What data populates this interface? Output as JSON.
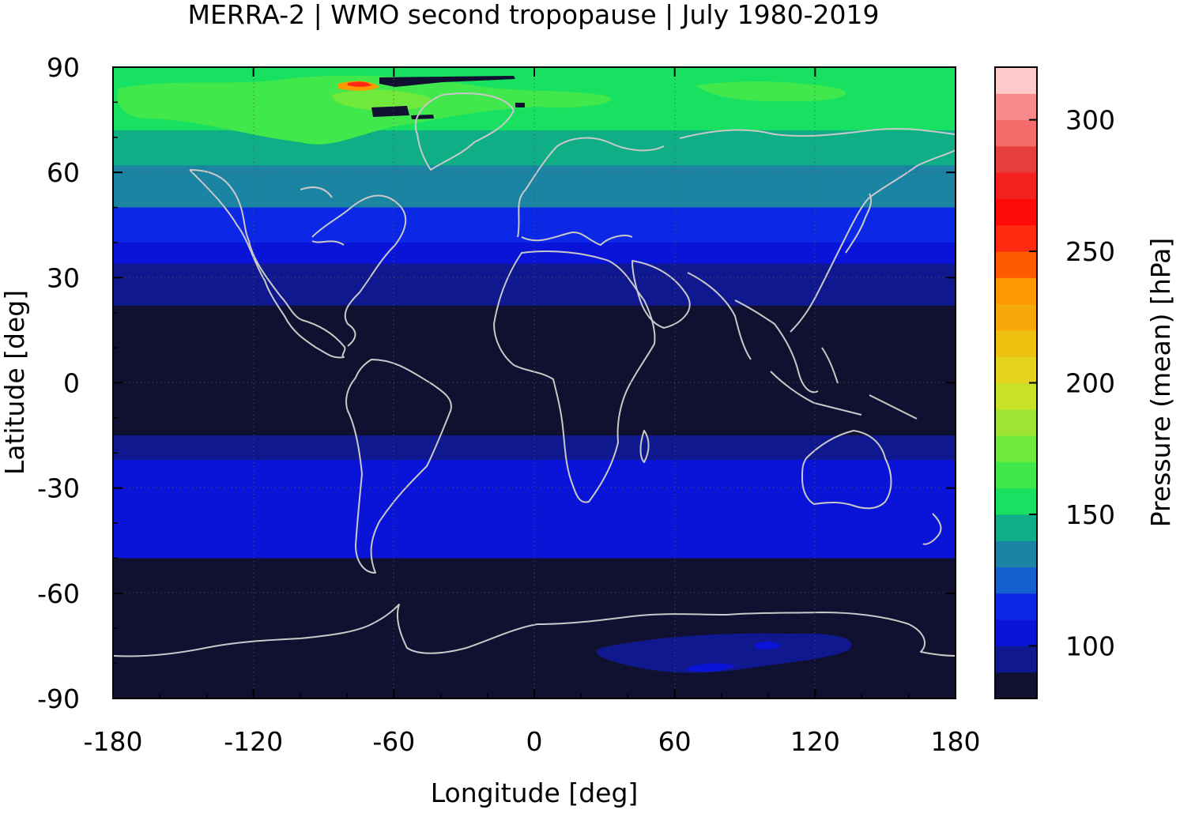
{
  "chart_data": {
    "type": "heatmap",
    "title": "MERRA-2 | WMO second tropopause | July 1980-2019",
    "xlabel": "Longitude [deg]",
    "ylabel": "Latitude [deg]",
    "xlim": [
      -180,
      180
    ],
    "ylim": [
      -90,
      90
    ],
    "x_ticks": [
      -180,
      -120,
      -60,
      0,
      60,
      120,
      180
    ],
    "y_ticks": [
      90,
      60,
      30,
      0,
      -30,
      -60,
      -90
    ],
    "x_tick_labels": [
      "-180",
      "-120",
      "-60",
      "0",
      "60",
      "120",
      "180"
    ],
    "y_tick_labels": [
      "90",
      "60",
      "30",
      "0",
      "-30",
      "-60",
      "-90"
    ],
    "grid": true,
    "colorbar": {
      "label": "Pressure (mean) [hPa]",
      "range": [
        80,
        320
      ],
      "ticks": [
        100,
        150,
        200,
        250,
        300
      ],
      "tick_labels": [
        "100",
        "150",
        "200",
        "250",
        "300"
      ],
      "levels": [
        80,
        90,
        100,
        110,
        120,
        130,
        140,
        150,
        160,
        170,
        180,
        190,
        200,
        210,
        220,
        230,
        240,
        250,
        260,
        270,
        280,
        290,
        300,
        310,
        320
      ],
      "colors": [
        "#101030",
        "#101890",
        "#0a14d8",
        "#0c28e6",
        "#1460cc",
        "#1a84a2",
        "#10ae86",
        "#18e060",
        "#40e84c",
        "#70e83c",
        "#9ee434",
        "#c8e22a",
        "#e4d41e",
        "#f0c010",
        "#f5a808",
        "#ff9800",
        "#ff5a00",
        "#ff2a10",
        "#ff0a0a",
        "#f52020",
        "#e83e3e",
        "#f56a6a",
        "#f98a8a",
        "#ffcaca"
      ]
    },
    "latitude_bands": [
      {
        "lat_max": 90,
        "lat_min": 82,
        "pressure": 150
      },
      {
        "lat_max": 82,
        "lat_min": 72,
        "pressure": 155
      },
      {
        "lat_max": 72,
        "lat_min": 62,
        "pressure": 140
      },
      {
        "lat_max": 62,
        "lat_min": 50,
        "pressure": 130
      },
      {
        "lat_max": 50,
        "lat_min": 40,
        "pressure": 115
      },
      {
        "lat_max": 40,
        "lat_min": 34,
        "pressure": 105
      },
      {
        "lat_max": 34,
        "lat_min": 22,
        "pressure": 95
      },
      {
        "lat_max": 22,
        "lat_min": -15,
        "pressure": 85
      },
      {
        "lat_max": -15,
        "lat_min": -22,
        "pressure": 95
      },
      {
        "lat_max": -22,
        "lat_min": -40,
        "pressure": 105
      },
      {
        "lat_max": -40,
        "lat_min": -50,
        "pressure": 100
      },
      {
        "lat_max": -50,
        "lat_min": -90,
        "pressure": 85
      }
    ]
  }
}
